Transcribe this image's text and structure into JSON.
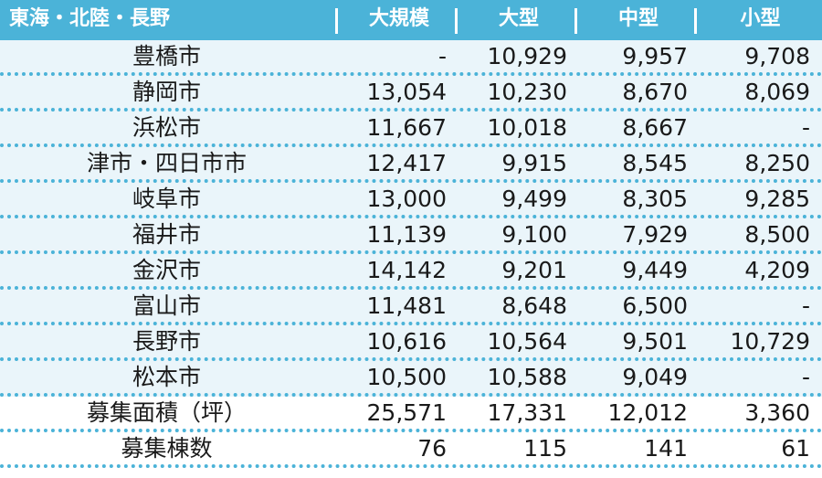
{
  "header": {
    "region": "東海・北陸・長野",
    "columns": [
      "大規模",
      "大型",
      "中型",
      "小型"
    ]
  },
  "rows": [
    {
      "name": "豊橋市",
      "values": [
        "-",
        "10,929",
        "9,957",
        "9,708"
      ]
    },
    {
      "name": "静岡市",
      "values": [
        "13,054",
        "10,230",
        "8,670",
        "8,069"
      ]
    },
    {
      "name": "浜松市",
      "values": [
        "11,667",
        "10,018",
        "8,667",
        "-"
      ]
    },
    {
      "name": "津市・四日市市",
      "values": [
        "12,417",
        "9,915",
        "8,545",
        "8,250"
      ]
    },
    {
      "name": "岐阜市",
      "values": [
        "13,000",
        "9,499",
        "8,305",
        "9,285"
      ]
    },
    {
      "name": "福井市",
      "values": [
        "11,139",
        "9,100",
        "7,929",
        "8,500"
      ]
    },
    {
      "name": "金沢市",
      "values": [
        "14,142",
        "9,201",
        "9,449",
        "4,209"
      ]
    },
    {
      "name": "富山市",
      "values": [
        "11,481",
        "8,648",
        "6,500",
        "-"
      ]
    },
    {
      "name": "長野市",
      "values": [
        "10,616",
        "10,564",
        "9,501",
        "10,729"
      ]
    },
    {
      "name": "松本市",
      "values": [
        "10,500",
        "10,588",
        "9,049",
        "-"
      ]
    }
  ],
  "summary": [
    {
      "name": "募集面積（坪）",
      "values": [
        "25,571",
        "17,331",
        "12,012",
        "3,360"
      ]
    },
    {
      "name": "募集棟数",
      "values": [
        "76",
        "115",
        "141",
        "61"
      ]
    }
  ],
  "colors": {
    "header_bg": "#4bb3d8",
    "row_bg": "#eaf5fa",
    "divider": "#4bb3d8"
  }
}
